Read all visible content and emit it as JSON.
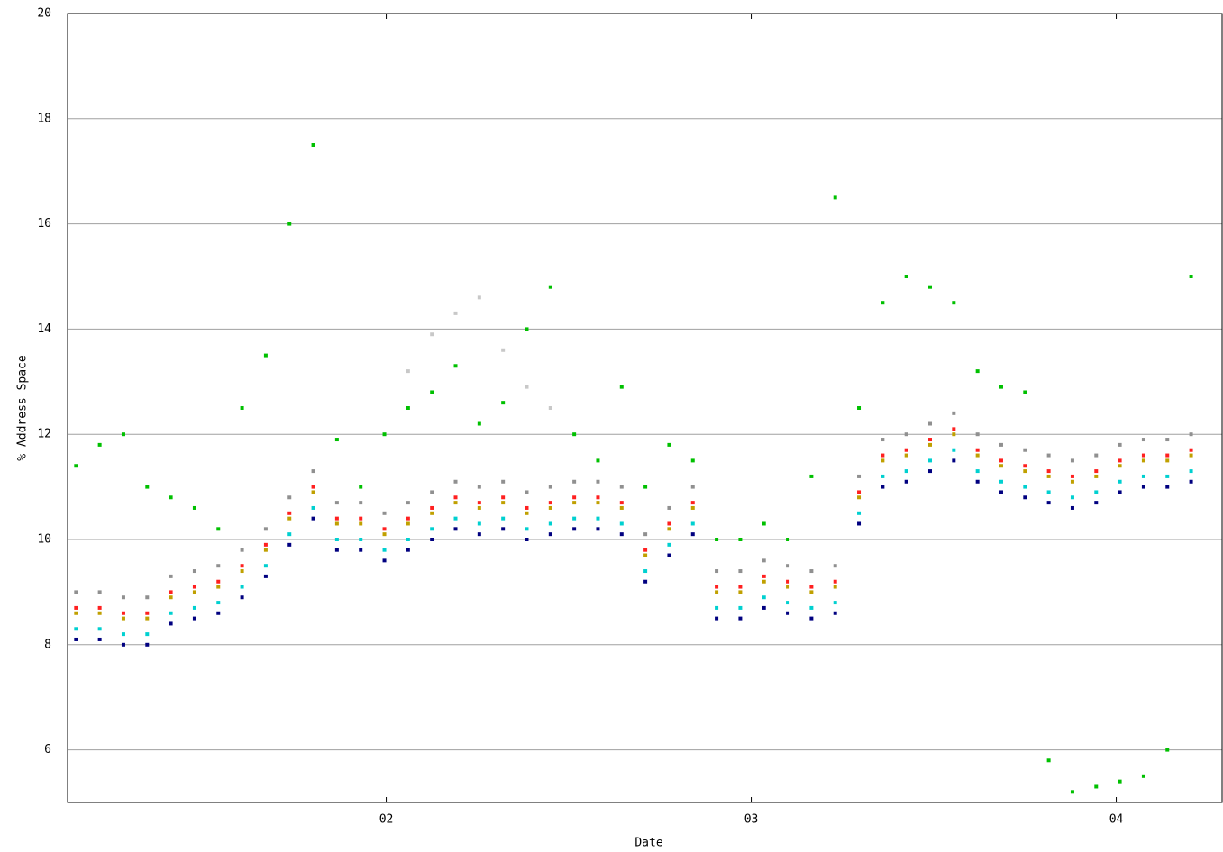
{
  "chart_data": {
    "type": "scatter",
    "xlabel": "Date",
    "ylabel": "% Address Space",
    "x": [
      2001.15,
      2001.215,
      2001.28,
      2001.345,
      2001.41,
      2001.475,
      2001.54,
      2001.605,
      2001.67,
      2001.735,
      2001.8,
      2001.865,
      2001.93,
      2001.995,
      2002.06,
      2002.125,
      2002.19,
      2002.255,
      2002.32,
      2002.385,
      2002.45,
      2002.515,
      2002.58,
      2002.645,
      2002.71,
      2002.775,
      2002.84,
      2002.905,
      2002.97,
      2003.035,
      2003.1,
      2003.165,
      2003.23,
      2003.295,
      2003.36,
      2003.425,
      2003.49,
      2003.555,
      2003.62,
      2003.685,
      2003.75,
      2003.815,
      2003.88,
      2003.945,
      2004.01,
      2004.075,
      2004.14,
      2004.205
    ],
    "series": [
      {
        "color": "#00c000",
        "values": [
          11.4,
          11.8,
          12.0,
          11.0,
          10.8,
          10.6,
          10.2,
          12.5,
          13.5,
          16.0,
          17.5,
          11.9,
          11.0,
          12.0,
          12.5,
          12.8,
          13.3,
          12.2,
          12.6,
          14.0,
          14.8,
          12.0,
          11.5,
          12.9,
          11.0,
          11.8,
          11.5,
          10.0,
          10.0,
          10.3,
          10.0,
          11.2,
          16.5,
          12.5,
          14.5,
          15.0,
          14.8,
          14.5,
          13.2,
          12.9,
          12.8,
          5.8,
          5.2,
          5.3,
          5.4,
          5.5,
          6.0,
          15.0
        ]
      },
      {
        "color": "#c8c8c8",
        "values": [
          null,
          null,
          null,
          null,
          null,
          null,
          null,
          null,
          null,
          null,
          null,
          null,
          null,
          null,
          13.2,
          13.9,
          14.3,
          14.6,
          13.6,
          12.9,
          12.5,
          null,
          null,
          null,
          null,
          null,
          null,
          null,
          null,
          null,
          null,
          null,
          null,
          null,
          null,
          null,
          null,
          null,
          null,
          null,
          null,
          null,
          null,
          null,
          null,
          null,
          null,
          null
        ]
      },
      {
        "color": "#909090",
        "values": [
          9.0,
          9.0,
          8.9,
          8.9,
          9.3,
          9.4,
          9.5,
          9.8,
          10.2,
          10.8,
          11.3,
          10.7,
          10.7,
          10.5,
          10.7,
          10.9,
          11.1,
          11.0,
          11.1,
          10.9,
          11.0,
          11.1,
          11.1,
          11.0,
          10.1,
          10.6,
          11.0,
          9.4,
          9.4,
          9.6,
          9.5,
          9.4,
          9.5,
          11.2,
          11.9,
          12.0,
          12.2,
          12.4,
          12.0,
          11.8,
          11.7,
          11.6,
          11.5,
          11.6,
          11.8,
          11.9,
          11.9,
          12.0
        ]
      },
      {
        "color": "#ff2020",
        "values": [
          8.7,
          8.7,
          8.6,
          8.6,
          9.0,
          9.1,
          9.2,
          9.5,
          9.9,
          10.5,
          11.0,
          10.4,
          10.4,
          10.2,
          10.4,
          10.6,
          10.8,
          10.7,
          10.8,
          10.6,
          10.7,
          10.8,
          10.8,
          10.7,
          9.8,
          10.3,
          10.7,
          9.1,
          9.1,
          9.3,
          9.2,
          9.1,
          9.2,
          10.9,
          11.6,
          11.7,
          11.9,
          12.1,
          11.7,
          11.5,
          11.4,
          11.3,
          11.2,
          11.3,
          11.5,
          11.6,
          11.6,
          11.7
        ]
      },
      {
        "color": "#c0a000",
        "values": [
          8.6,
          8.6,
          8.5,
          8.5,
          8.9,
          9.0,
          9.1,
          9.4,
          9.8,
          10.4,
          10.9,
          10.3,
          10.3,
          10.1,
          10.3,
          10.5,
          10.7,
          10.6,
          10.7,
          10.5,
          10.6,
          10.7,
          10.7,
          10.6,
          9.7,
          10.2,
          10.6,
          9.0,
          9.0,
          9.2,
          9.1,
          9.0,
          9.1,
          10.8,
          11.5,
          11.6,
          11.8,
          12.0,
          11.6,
          11.4,
          11.3,
          11.2,
          11.1,
          11.2,
          11.4,
          11.5,
          11.5,
          11.6
        ]
      },
      {
        "color": "#00d0d0",
        "values": [
          8.3,
          8.3,
          8.2,
          8.2,
          8.6,
          8.7,
          8.8,
          9.1,
          9.5,
          10.1,
          10.6,
          10.0,
          10.0,
          9.8,
          10.0,
          10.2,
          10.4,
          10.3,
          10.4,
          10.2,
          10.3,
          10.4,
          10.4,
          10.3,
          9.4,
          9.9,
          10.3,
          8.7,
          8.7,
          8.9,
          8.8,
          8.7,
          8.8,
          10.5,
          11.2,
          11.3,
          11.5,
          11.7,
          11.3,
          11.1,
          11.0,
          10.9,
          10.8,
          10.9,
          11.1,
          11.2,
          11.2,
          11.3
        ]
      },
      {
        "color": "#000080",
        "values": [
          8.1,
          8.1,
          8.0,
          8.0,
          8.4,
          8.5,
          8.6,
          8.9,
          9.3,
          9.9,
          10.4,
          9.8,
          9.8,
          9.6,
          9.8,
          10.0,
          10.2,
          10.1,
          10.2,
          10.0,
          10.1,
          10.2,
          10.2,
          10.1,
          9.2,
          9.7,
          10.1,
          8.5,
          8.5,
          8.7,
          8.6,
          8.5,
          8.6,
          10.3,
          11.0,
          11.1,
          11.3,
          11.5,
          11.1,
          10.9,
          10.8,
          10.7,
          10.6,
          10.7,
          10.9,
          11.0,
          11.0,
          11.1
        ]
      }
    ],
    "xlim": [
      2001.127,
      2004.29
    ],
    "xticks": [
      {
        "value": 2002,
        "label": "02"
      },
      {
        "value": 2003,
        "label": "03"
      },
      {
        "value": 2004,
        "label": "04"
      }
    ],
    "ylim": [
      5,
      20
    ],
    "yticks": [
      6,
      8,
      10,
      12,
      14,
      16,
      18,
      20
    ],
    "grid": true
  }
}
